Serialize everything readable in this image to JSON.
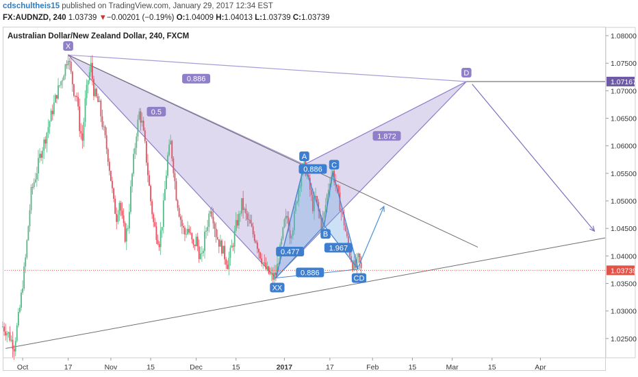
{
  "header": {
    "username": "cdschultheis15",
    "published_text": " published on TradingView.com, January 29, 2017 12:34 EST",
    "symbol": "FX:AUDNZD, 240",
    "last": "1.03739",
    "down_arrow": "▼",
    "change": "−0.00201 (−0.19%)",
    "o_label": "O:",
    "open": "1.04009",
    "h_label": "H:",
    "high": "1.04013",
    "l_label": "L:",
    "low": "1.03739",
    "c_label": "C:",
    "close": "1.03739"
  },
  "chart_data": {
    "type": "candlestick",
    "title": "Australian Dollar/New Zealand Dollar, 240, FXCM",
    "x_axis": {
      "unit": "days since 2016-09-24",
      "range": [
        0,
        212
      ],
      "ticks": [
        {
          "label": "Oct",
          "x": 7
        },
        {
          "label": "17",
          "x": 23
        },
        {
          "label": "Nov",
          "x": 38
        },
        {
          "label": "15",
          "x": 52
        },
        {
          "label": "Dec",
          "x": 68
        },
        {
          "label": "15",
          "x": 82
        },
        {
          "label": "2017",
          "x": 99,
          "bold": true
        },
        {
          "label": "17",
          "x": 115
        },
        {
          "label": "Feb",
          "x": 130
        },
        {
          "label": "15",
          "x": 144
        },
        {
          "label": "Mar",
          "x": 158
        },
        {
          "label": "15",
          "x": 172
        },
        {
          "label": "Apr",
          "x": 189
        }
      ]
    },
    "y_axis": {
      "range": [
        1.0215,
        1.0815
      ],
      "ticks": [
        "1.08000",
        "1.07500",
        "1.07000",
        "1.06500",
        "1.06000",
        "1.05500",
        "1.05000",
        "1.04500",
        "1.04000",
        "1.03500",
        "1.03000",
        "1.02500"
      ]
    },
    "price_labels": [
      {
        "label": "1.07167",
        "value": 1.07167,
        "color": "#6f5aa8"
      },
      {
        "label": "1.03739",
        "value": 1.03739,
        "color": "#e0544a"
      }
    ],
    "last_price_line": 1.03739,
    "price_path": [
      [
        0,
        1.0272
      ],
      [
        2,
        1.0258
      ],
      [
        4,
        1.0235
      ],
      [
        6,
        1.0305
      ],
      [
        8,
        1.0395
      ],
      [
        9,
        1.0455
      ],
      [
        10,
        1.0515
      ],
      [
        12,
        1.0555
      ],
      [
        13,
        1.058
      ],
      [
        15,
        1.0615
      ],
      [
        17,
        1.0655
      ],
      [
        19,
        1.0695
      ],
      [
        21,
        1.0725
      ],
      [
        23,
        1.0765
      ],
      [
        24,
        1.073
      ],
      [
        25,
        1.07
      ],
      [
        26,
        1.069
      ],
      [
        27,
        1.0635
      ],
      [
        28,
        1.061
      ],
      [
        29,
        1.068
      ],
      [
        30,
        1.072
      ],
      [
        31,
        1.0745
      ],
      [
        32,
        1.07
      ],
      [
        34,
        1.0672
      ],
      [
        35,
        1.064
      ],
      [
        36,
        1.0612
      ],
      [
        37,
        1.058
      ],
      [
        38,
        1.054
      ],
      [
        39,
        1.0495
      ],
      [
        40,
        1.047
      ],
      [
        41,
        1.05
      ],
      [
        42,
        1.0465
      ],
      [
        43,
        1.0435
      ],
      [
        44,
        1.0455
      ],
      [
        45,
        1.052
      ],
      [
        46,
        1.0575
      ],
      [
        47,
        1.0625
      ],
      [
        48,
        1.066
      ],
      [
        49,
        1.064
      ],
      [
        50,
        1.06
      ],
      [
        51,
        1.055
      ],
      [
        52,
        1.05
      ],
      [
        53,
        1.046
      ],
      [
        54,
        1.044
      ],
      [
        55,
        1.0425
      ],
      [
        56,
        1.046
      ],
      [
        57,
        1.052
      ],
      [
        58,
        1.058
      ],
      [
        59,
        1.0605
      ],
      [
        60,
        1.056
      ],
      [
        61,
        1.051
      ],
      [
        62,
        1.048
      ],
      [
        63,
        1.0455
      ],
      [
        64,
        1.044
      ],
      [
        65,
        1.045
      ],
      [
        66,
        1.0435
      ],
      [
        67,
        1.0415
      ],
      [
        68,
        1.043
      ],
      [
        69,
        1.0405
      ],
      [
        70,
        1.0395
      ],
      [
        71,
        1.0435
      ],
      [
        72,
        1.046
      ],
      [
        73,
        1.049
      ],
      [
        74,
        1.047
      ],
      [
        75,
        1.044
      ],
      [
        76,
        1.0425
      ],
      [
        77,
        1.0415
      ],
      [
        78,
        1.04
      ],
      [
        79,
        1.0385
      ],
      [
        80,
        1.0405
      ],
      [
        81,
        1.0425
      ],
      [
        82,
        1.0455
      ],
      [
        83,
        1.047
      ],
      [
        84,
        1.0495
      ],
      [
        85,
        1.048
      ],
      [
        86,
        1.0465
      ],
      [
        87,
        1.0455
      ],
      [
        88,
        1.044
      ],
      [
        89,
        1.043
      ],
      [
        90,
        1.041
      ],
      [
        91,
        1.0395
      ],
      [
        92,
        1.038
      ],
      [
        93,
        1.0372
      ],
      [
        94,
        1.0365
      ],
      [
        95,
        1.036
      ],
      [
        96,
        1.0368
      ],
      [
        97,
        1.0395
      ],
      [
        98,
        1.0425
      ],
      [
        99,
        1.046
      ],
      [
        100,
        1.047
      ],
      [
        101,
        1.044
      ],
      [
        102,
        1.0455
      ],
      [
        103,
        1.049
      ],
      [
        104,
        1.0525
      ],
      [
        105,
        1.055
      ],
      [
        106,
        1.0566
      ],
      [
        107,
        1.0545
      ],
      [
        108,
        1.052
      ],
      [
        109,
        1.049
      ],
      [
        110,
        1.0505
      ],
      [
        111,
        1.048
      ],
      [
        112,
        1.0455
      ],
      [
        113,
        1.0475
      ],
      [
        114,
        1.051
      ],
      [
        115,
        1.054
      ],
      [
        116,
        1.0552
      ],
      [
        117,
        1.053
      ],
      [
        118,
        1.0505
      ],
      [
        119,
        1.048
      ],
      [
        120,
        1.046
      ],
      [
        121,
        1.043
      ],
      [
        122,
        1.0405
      ],
      [
        123,
        1.0385
      ],
      [
        124,
        1.0379
      ],
      [
        125,
        1.0395
      ],
      [
        126,
        1.0374
      ]
    ],
    "x_point": {
      "x": 23,
      "y": 1.0765
    },
    "harmonic_big": {
      "points": {
        "X": [
          23,
          1.0765
        ],
        "A": [
          96,
          1.036
        ],
        "B": [
          106,
          1.0566
        ],
        "D": [
          163,
          1.07167
        ]
      },
      "labels": [
        "X",
        "D"
      ],
      "ratios": [
        {
          "label": "0.886",
          "x": 68,
          "y": 1.0722
        },
        {
          "label": "0.5",
          "x": 54,
          "y": 1.0662
        },
        {
          "label": "1.872",
          "x": 135,
          "y": 1.0618
        }
      ]
    },
    "harmonic_small": {
      "points": {
        "X": [
          96,
          1.036
        ],
        "A": [
          106,
          1.0566
        ],
        "B": [
          113,
          1.0455
        ],
        "C": [
          116,
          1.0552
        ],
        "D": [
          125,
          1.0376
        ]
      },
      "labels": [
        "A",
        "B",
        "C",
        "CD",
        "XX"
      ],
      "ratios": [
        {
          "label": "0.886",
          "x": 109,
          "y": 1.0558
        },
        {
          "label": "0.477",
          "x": 101,
          "y": 1.0408
        },
        {
          "label": "1.967",
          "x": 118,
          "y": 1.0415
        },
        {
          "label": "0.886",
          "x": 108,
          "y": 1.037
        }
      ]
    },
    "trend_lines": [
      {
        "from": [
          1,
          1.0232
        ],
        "to": [
          212,
          1.0433
        ]
      },
      {
        "from": [
          23,
          1.0765
        ],
        "to": [
          167,
          1.0416
        ]
      },
      {
        "from": [
          163,
          1.07167
        ],
        "to": [
          212,
          1.07167
        ]
      }
    ],
    "projection_arrows": [
      {
        "from": [
          165,
          1.0712
        ],
        "to": [
          208,
          1.0445
        ]
      },
      {
        "from": [
          125,
          1.038
        ],
        "to": [
          134,
          1.049
        ]
      }
    ]
  }
}
